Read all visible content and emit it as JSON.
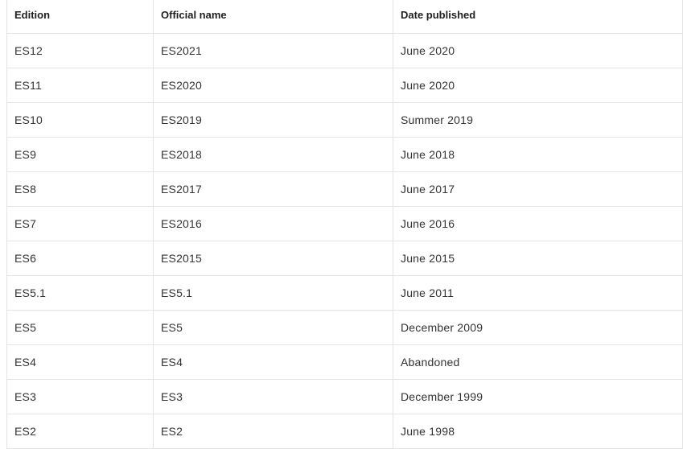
{
  "table": {
    "headers": [
      "Edition",
      "Official name",
      "Date published"
    ],
    "rows": [
      [
        "ES12",
        "ES2021",
        "June 2020"
      ],
      [
        "ES11",
        "ES2020",
        "June 2020"
      ],
      [
        "ES10",
        "ES2019",
        "Summer 2019"
      ],
      [
        "ES9",
        "ES2018",
        "June 2018"
      ],
      [
        "ES8",
        "ES2017",
        "June 2017"
      ],
      [
        "ES7",
        "ES2016",
        "June 2016"
      ],
      [
        "ES6",
        "ES2015",
        "June 2015"
      ],
      [
        "ES5.1",
        "ES5.1",
        "June 2011"
      ],
      [
        "ES5",
        "ES5",
        "December 2009"
      ],
      [
        "ES4",
        "ES4",
        "Abandoned"
      ],
      [
        "ES3",
        "ES3",
        "December 1999"
      ],
      [
        "ES2",
        "ES2",
        "June 1998"
      ]
    ]
  }
}
